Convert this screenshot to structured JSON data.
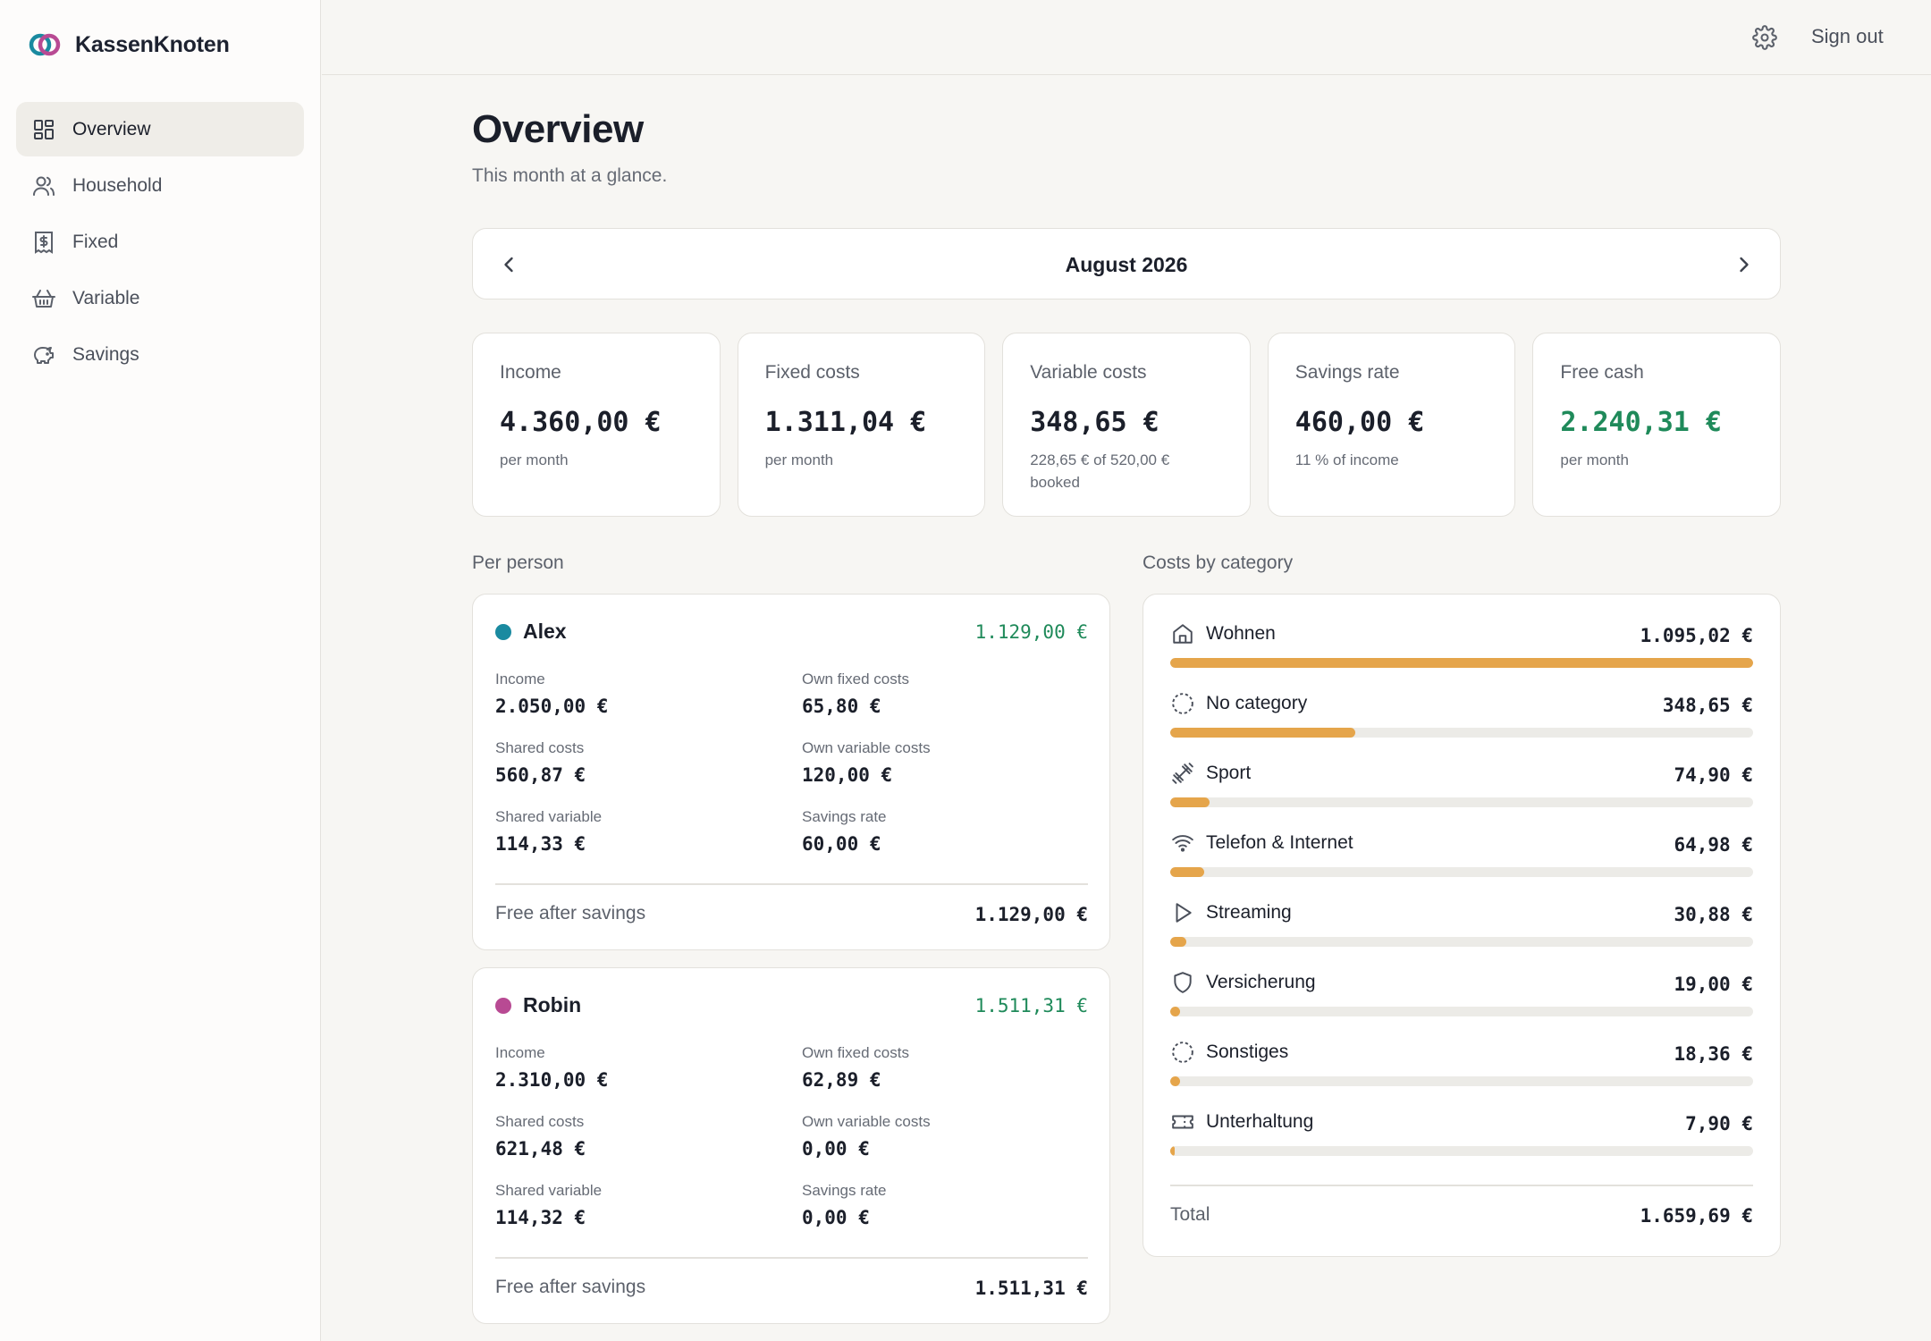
{
  "app": {
    "name": "KassenKnoten"
  },
  "sidebar": {
    "items": [
      {
        "label": "Overview",
        "icon": "dashboard-icon",
        "active": true
      },
      {
        "label": "Household",
        "icon": "users-icon",
        "active": false
      },
      {
        "label": "Fixed",
        "icon": "receipt-icon",
        "active": false
      },
      {
        "label": "Variable",
        "icon": "basket-icon",
        "active": false
      },
      {
        "label": "Savings",
        "icon": "piggy-bank-icon",
        "active": false
      }
    ]
  },
  "topbar": {
    "signout_label": "Sign out",
    "settings_icon": "gear-icon"
  },
  "page": {
    "title": "Overview",
    "subtitle": "This month at a glance."
  },
  "month": {
    "label": "August 2026"
  },
  "stats": [
    {
      "label": "Income",
      "value": "4.360,00 €",
      "sub": "per month"
    },
    {
      "label": "Fixed costs",
      "value": "1.311,04 €",
      "sub": "per month"
    },
    {
      "label": "Variable costs",
      "value": "348,65 €",
      "sub": "228,65 € of 520,00 € booked"
    },
    {
      "label": "Savings rate",
      "value": "460,00 €",
      "sub": "11 % of income"
    },
    {
      "label": "Free cash",
      "value": "2.240,31 €",
      "sub": "per month"
    }
  ],
  "sections": {
    "per_person": "Per person",
    "by_category": "Costs by category"
  },
  "persons": [
    {
      "name": "Alex",
      "color": "#1a8aa0",
      "free_amount": "1.129,00 €",
      "fields": {
        "income_label": "Income",
        "income": "2.050,00 €",
        "own_fixed_label": "Own fixed costs",
        "own_fixed": "65,80 €",
        "shared_costs_label": "Shared costs",
        "shared_costs": "560,87 €",
        "own_variable_label": "Own variable costs",
        "own_variable": "120,00 €",
        "shared_variable_label": "Shared variable",
        "shared_variable": "114,33 €",
        "savings_rate_label": "Savings rate",
        "savings_rate": "60,00 €"
      },
      "foot_label": "Free after savings",
      "foot_value": "1.129,00 €"
    },
    {
      "name": "Robin",
      "color": "#b84a93",
      "free_amount": "1.511,31 €",
      "fields": {
        "income_label": "Income",
        "income": "2.310,00 €",
        "own_fixed_label": "Own fixed costs",
        "own_fixed": "62,89 €",
        "shared_costs_label": "Shared costs",
        "shared_costs": "621,48 €",
        "own_variable_label": "Own variable costs",
        "own_variable": "0,00 €",
        "shared_variable_label": "Shared variable",
        "shared_variable": "114,32 €",
        "savings_rate_label": "Savings rate",
        "savings_rate": "0,00 €"
      },
      "foot_label": "Free after savings",
      "foot_value": "1.511,31 €"
    }
  ],
  "categories": {
    "items": [
      {
        "name": "Wohnen",
        "amount": "1.095,02 €",
        "share": 1.0,
        "icon": "home-icon"
      },
      {
        "name": "No category",
        "amount": "348,65 €",
        "share": 0.318,
        "icon": "dashed-circle-icon"
      },
      {
        "name": "Sport",
        "amount": "74,90 €",
        "share": 0.068,
        "icon": "dumbbell-icon"
      },
      {
        "name": "Telefon & Internet",
        "amount": "64,98 €",
        "share": 0.059,
        "icon": "wifi-icon"
      },
      {
        "name": "Streaming",
        "amount": "30,88 €",
        "share": 0.028,
        "icon": "play-icon"
      },
      {
        "name": "Versicherung",
        "amount": "19,00 €",
        "share": 0.017,
        "icon": "shield-icon"
      },
      {
        "name": "Sonstiges",
        "amount": "18,36 €",
        "share": 0.017,
        "icon": "dashed-circle-icon"
      },
      {
        "name": "Unterhaltung",
        "amount": "7,90 €",
        "share": 0.007,
        "icon": "ticket-icon"
      }
    ],
    "total_label": "Total",
    "total_value": "1.659,69 €",
    "bar_color": "#e5a54b"
  }
}
